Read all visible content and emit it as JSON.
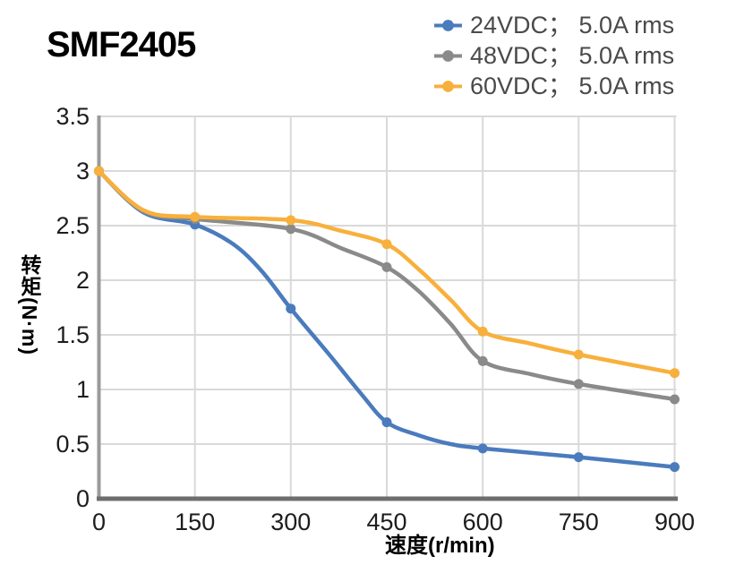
{
  "chart_data": {
    "type": "line",
    "title": "SMF2405",
    "xlabel": "速度(r/min)",
    "ylabel": "转矩(N·m)",
    "xlim": [
      0,
      900
    ],
    "ylim": [
      0,
      3.5
    ],
    "grid": true,
    "legend_position": "top-right",
    "marker": "circle",
    "categories": [
      0,
      150,
      300,
      450,
      600,
      750,
      900
    ],
    "xticks": [
      0,
      150,
      300,
      450,
      600,
      750,
      900
    ],
    "xtick_labels": [
      "0",
      "150",
      "300",
      "450",
      "600",
      "750",
      "900"
    ],
    "yticks": [
      0,
      0.5,
      1,
      1.5,
      2,
      2.5,
      3,
      3.5
    ],
    "ytick_labels": [
      "0",
      "0.5",
      "1",
      "1.5",
      "2",
      "2.5",
      "3",
      "3.5"
    ],
    "series": [
      {
        "name": "24VDC； 5.0A rms",
        "color": "#4A7BBD",
        "values": [
          3.0,
          2.51,
          1.74,
          0.7,
          0.46,
          0.38,
          0.29
        ],
        "shape_points": [
          [
            0,
            3.0
          ],
          [
            70,
            2.62
          ],
          [
            150,
            2.51
          ],
          [
            210,
            2.33
          ],
          [
            255,
            2.08
          ],
          [
            300,
            1.74
          ],
          [
            360,
            1.32
          ],
          [
            410,
            0.96
          ],
          [
            450,
            0.7
          ],
          [
            500,
            0.58
          ],
          [
            550,
            0.5
          ],
          [
            600,
            0.46
          ],
          [
            750,
            0.38
          ],
          [
            900,
            0.29
          ]
        ]
      },
      {
        "name": "48VDC； 5.0A rms",
        "color": "#8A8A8A",
        "values": [
          3.0,
          2.56,
          2.47,
          2.12,
          1.26,
          1.05,
          0.91
        ],
        "shape_points": [
          [
            0,
            3.0
          ],
          [
            70,
            2.63
          ],
          [
            150,
            2.56
          ],
          [
            300,
            2.47
          ],
          [
            380,
            2.29
          ],
          [
            450,
            2.12
          ],
          [
            500,
            1.9
          ],
          [
            550,
            1.6
          ],
          [
            600,
            1.26
          ],
          [
            675,
            1.14
          ],
          [
            750,
            1.05
          ],
          [
            900,
            0.91
          ]
        ]
      },
      {
        "name": "60VDC； 5.0A rms",
        "color": "#F8B03C",
        "values": [
          3.0,
          2.58,
          2.55,
          2.33,
          1.53,
          1.32,
          1.15
        ],
        "shape_points": [
          [
            0,
            3.0
          ],
          [
            70,
            2.64
          ],
          [
            150,
            2.58
          ],
          [
            300,
            2.55
          ],
          [
            380,
            2.45
          ],
          [
            450,
            2.33
          ],
          [
            500,
            2.1
          ],
          [
            550,
            1.82
          ],
          [
            600,
            1.53
          ],
          [
            675,
            1.42
          ],
          [
            750,
            1.32
          ],
          [
            900,
            1.15
          ]
        ]
      }
    ],
    "colors": {
      "grid": "#D9D9D9",
      "axis_x": "#6E6E6E",
      "axis_y": "#9A9A9A",
      "tick_text": "#1D1D1D"
    }
  }
}
